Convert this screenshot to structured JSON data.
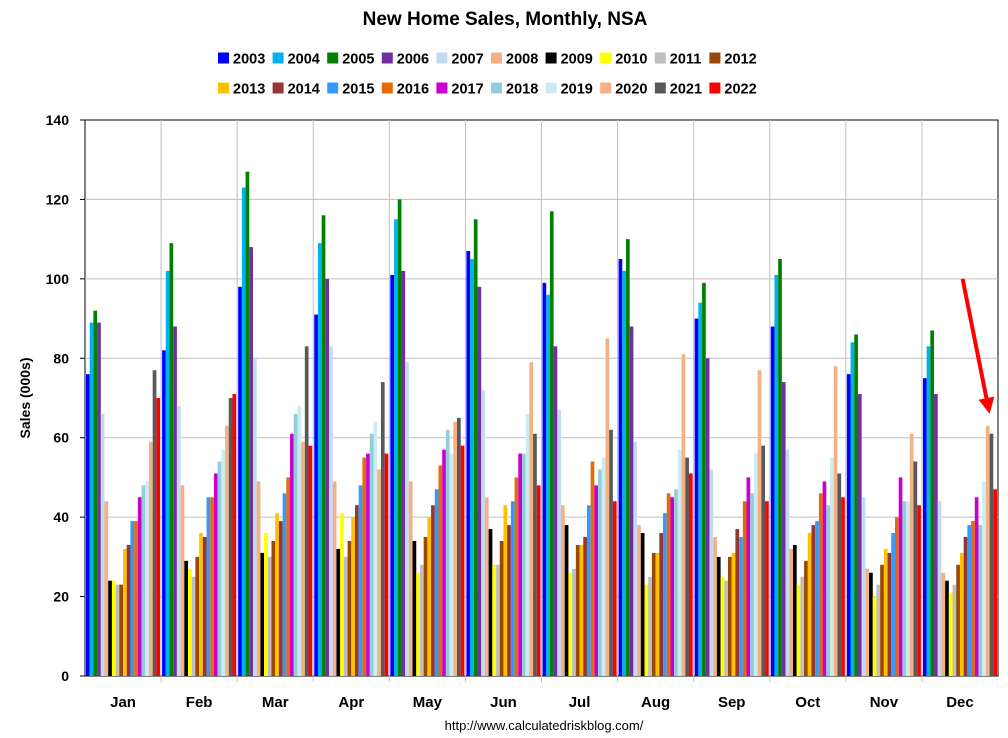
{
  "chart_data": {
    "type": "bar",
    "title": "New Home Sales, Monthly, NSA",
    "ylabel": "Sales (000s)",
    "xlabel": "",
    "ylim": [
      0,
      140
    ],
    "yticks": [
      0,
      20,
      40,
      60,
      80,
      100,
      120,
      140
    ],
    "grid": true,
    "legend_position": "top",
    "source": "http://www.calculatedriskblog.com/",
    "categories": [
      "Jan",
      "Feb",
      "Mar",
      "Apr",
      "May",
      "Jun",
      "Jul",
      "Aug",
      "Sep",
      "Oct",
      "Nov",
      "Dec"
    ],
    "series": [
      {
        "name": "2003",
        "color": "#0000ff",
        "values": [
          76,
          82,
          98,
          91,
          101,
          107,
          99,
          105,
          90,
          88,
          76,
          75
        ]
      },
      {
        "name": "2004",
        "color": "#00b0f0",
        "values": [
          89,
          102,
          123,
          109,
          115,
          105,
          96,
          102,
          94,
          101,
          84,
          83
        ]
      },
      {
        "name": "2005",
        "color": "#008000",
        "values": [
          92,
          109,
          127,
          116,
          120,
          115,
          117,
          110,
          99,
          105,
          86,
          87
        ]
      },
      {
        "name": "2006",
        "color": "#7030a0",
        "values": [
          89,
          88,
          108,
          100,
          102,
          98,
          83,
          88,
          80,
          74,
          71,
          71
        ]
      },
      {
        "name": "2007",
        "color": "#c5d9f1",
        "values": [
          66,
          68,
          80,
          83,
          79,
          72,
          67,
          59,
          52,
          57,
          45,
          44
        ]
      },
      {
        "name": "2008",
        "color": "#f4b183",
        "values": [
          44,
          48,
          49,
          49,
          49,
          45,
          43,
          38,
          35,
          32,
          27,
          26
        ]
      },
      {
        "name": "2009",
        "color": "#000000",
        "values": [
          24,
          29,
          31,
          32,
          34,
          37,
          38,
          36,
          30,
          33,
          26,
          24
        ]
      },
      {
        "name": "2010",
        "color": "#ffff00",
        "values": [
          24,
          27,
          36,
          41,
          26,
          28,
          26,
          23,
          25,
          23,
          20,
          21
        ]
      },
      {
        "name": "2011",
        "color": "#bfbfbf",
        "values": [
          23,
          25,
          30,
          30,
          28,
          28,
          27,
          25,
          24,
          25,
          23,
          23
        ]
      },
      {
        "name": "2012",
        "color": "#984807",
        "values": [
          23,
          30,
          34,
          34,
          35,
          34,
          33,
          31,
          30,
          29,
          28,
          28
        ]
      },
      {
        "name": "2013",
        "color": "#ffc000",
        "values": [
          32,
          36,
          41,
          40,
          40,
          43,
          33,
          31,
          31,
          36,
          32,
          31
        ]
      },
      {
        "name": "2014",
        "color": "#943634",
        "values": [
          33,
          35,
          39,
          43,
          43,
          38,
          35,
          36,
          37,
          38,
          31,
          35
        ]
      },
      {
        "name": "2015",
        "color": "#3399ff",
        "values": [
          39,
          45,
          46,
          48,
          47,
          44,
          43,
          41,
          35,
          39,
          36,
          38
        ]
      },
      {
        "name": "2016",
        "color": "#e36c09",
        "values": [
          39,
          45,
          50,
          55,
          53,
          50,
          54,
          46,
          44,
          46,
          40,
          39
        ]
      },
      {
        "name": "2017",
        "color": "#cc00cc",
        "values": [
          45,
          51,
          61,
          56,
          57,
          56,
          48,
          45,
          50,
          49,
          50,
          45
        ]
      },
      {
        "name": "2018",
        "color": "#93cddd",
        "values": [
          48,
          54,
          66,
          61,
          62,
          56,
          52,
          47,
          46,
          43,
          44,
          38
        ]
      },
      {
        "name": "2019",
        "color": "#ccecf0",
        "values": [
          49,
          57,
          68,
          64,
          56,
          66,
          55,
          57,
          56,
          55,
          44,
          49
        ]
      },
      {
        "name": "2020",
        "color": "#f4b183",
        "values": [
          59,
          63,
          59,
          52,
          64,
          79,
          85,
          81,
          77,
          78,
          61,
          63
        ]
      },
      {
        "name": "2021",
        "color": "#595959",
        "values": [
          77,
          70,
          83,
          74,
          65,
          61,
          62,
          55,
          58,
          51,
          54,
          61
        ]
      },
      {
        "name": "2022",
        "color": "#ff0000",
        "values": [
          70,
          71,
          58,
          56,
          58,
          48,
          44,
          51,
          44,
          45,
          43,
          47
        ]
      }
    ],
    "annotations": [
      {
        "type": "arrow",
        "color": "#ff0000",
        "target_category": "Dec",
        "target_series": "2022"
      }
    ]
  }
}
